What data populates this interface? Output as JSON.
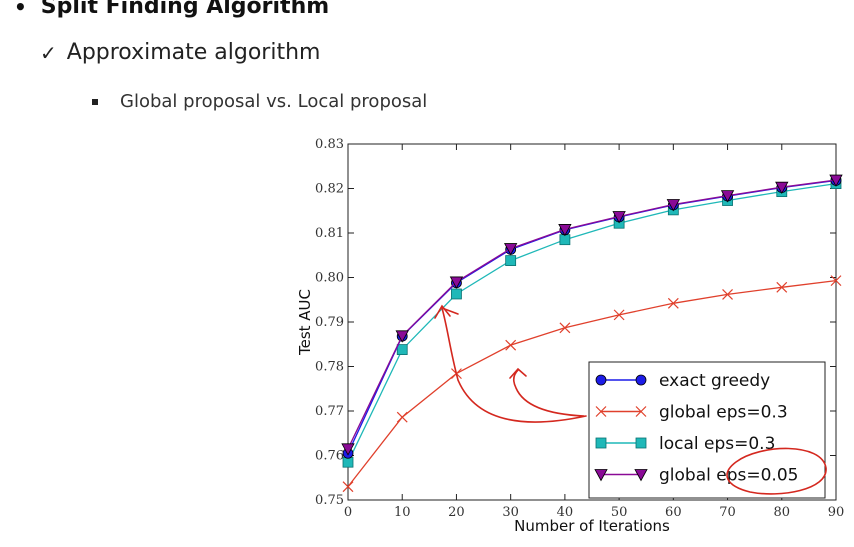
{
  "slide": {
    "heading": "Split Finding Algorithm",
    "subheading": "Approximate algorithm",
    "subheading_mark": "✓",
    "bullet": "Global proposal vs. Local proposal"
  },
  "chart_data": {
    "type": "line",
    "xlabel": "Number of Iterations",
    "ylabel": "Test AUC",
    "xlim": [
      0,
      90
    ],
    "ylim": [
      0.75,
      0.83
    ],
    "x": [
      0,
      10,
      20,
      30,
      40,
      50,
      60,
      70,
      80,
      90
    ],
    "x_ticks": [
      "0",
      "10",
      "20",
      "30",
      "40",
      "50",
      "60",
      "70",
      "80",
      "90"
    ],
    "y_ticks": [
      "0.75",
      "0.76",
      "0.77",
      "0.78",
      "0.79",
      "0.80",
      "0.81",
      "0.82",
      "0.83"
    ],
    "legend_position": "bottom-right",
    "grid": false,
    "series": [
      {
        "name": "exact greedy",
        "color": "#1c1ce8",
        "marker": "circle",
        "values": [
          0.7605,
          0.7868,
          0.7988,
          0.8063,
          0.8107,
          0.8136,
          0.8163,
          0.8183,
          0.8202,
          0.8218
        ]
      },
      {
        "name": "global eps=0.3",
        "color": "#e0402c",
        "marker": "x",
        "values": [
          0.753,
          0.7686,
          0.7784,
          0.7848,
          0.7887,
          0.7916,
          0.7942,
          0.7962,
          0.7978,
          0.7993
        ]
      },
      {
        "name": "local eps=0.3",
        "color": "#1fb8b8",
        "marker": "square",
        "values": [
          0.7585,
          0.7838,
          0.7963,
          0.8038,
          0.8085,
          0.8122,
          0.8152,
          0.8173,
          0.8193,
          0.8211
        ]
      },
      {
        "name": "global eps=0.05",
        "color": "#8a0a96",
        "marker": "triangle-down",
        "values": [
          0.7615,
          0.7869,
          0.799,
          0.8065,
          0.8108,
          0.8137,
          0.8164,
          0.8184,
          0.8203,
          0.8219
        ]
      }
    ]
  },
  "annotation_color": "#d4281f"
}
